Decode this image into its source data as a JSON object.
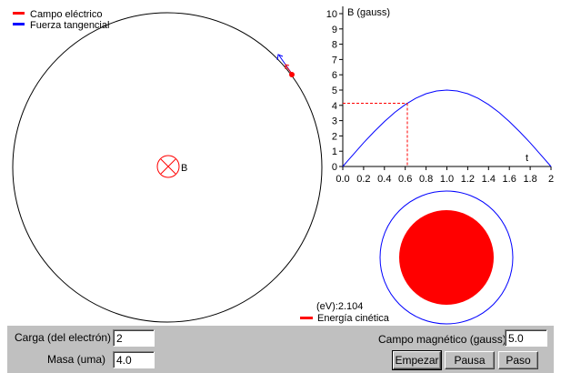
{
  "legend": {
    "electric_field": "Campo eléctrico",
    "tangential_force": "Fuerza tangencial",
    "electric_field_color": "#ff0000",
    "tangential_force_color": "#0000ff"
  },
  "field_symbol_label": "B",
  "chart_data": {
    "type": "line",
    "ylabel": "B (gauss)",
    "xlabel": "t",
    "xlim": [
      0,
      2
    ],
    "ylim": [
      0,
      10
    ],
    "xticks": [
      "0.0",
      "0.2",
      "0.4",
      "0.6",
      "0.8",
      "1.0",
      "1.2",
      "1.4",
      "1.6",
      "1.8",
      "2"
    ],
    "yticks": [
      "0",
      "1",
      "2",
      "3",
      "4",
      "5",
      "6",
      "7",
      "8",
      "9",
      "10"
    ],
    "series": [
      {
        "color": "#0000ff",
        "x": [
          0,
          0.1,
          0.2,
          0.3,
          0.4,
          0.5,
          0.6,
          0.7,
          0.8,
          0.9,
          1.0,
          1.1,
          1.2,
          1.3,
          1.4,
          1.5,
          1.6,
          1.7,
          1.8,
          1.9,
          2.0
        ],
        "y": [
          0,
          0.78,
          1.55,
          2.27,
          2.94,
          3.54,
          4.05,
          4.46,
          4.76,
          4.94,
          5.0,
          4.94,
          4.76,
          4.46,
          4.05,
          3.54,
          2.94,
          2.27,
          1.55,
          0.78,
          0
        ]
      }
    ],
    "marker": {
      "x": 0.62,
      "y": 4.14,
      "color": "#ff0000"
    }
  },
  "energy": {
    "value_text": "(eV):2.104",
    "label": "Energía cinética",
    "color": "#ff0000"
  },
  "controls": {
    "charge_label": "Carga (del electrón)",
    "charge_value": "2",
    "mass_label": "Masa (uma)",
    "mass_value": "4.0",
    "field_label": "Campo magnético (gauss)",
    "field_value": "5.0",
    "start_label": "Empezar",
    "pause_label": "Pausa",
    "step_label": "Paso"
  },
  "colors": {
    "orbit": "#000000",
    "particle": "#ff0000",
    "energy_ring": "#0000ff",
    "panel_bg": "#c0c0c0"
  }
}
